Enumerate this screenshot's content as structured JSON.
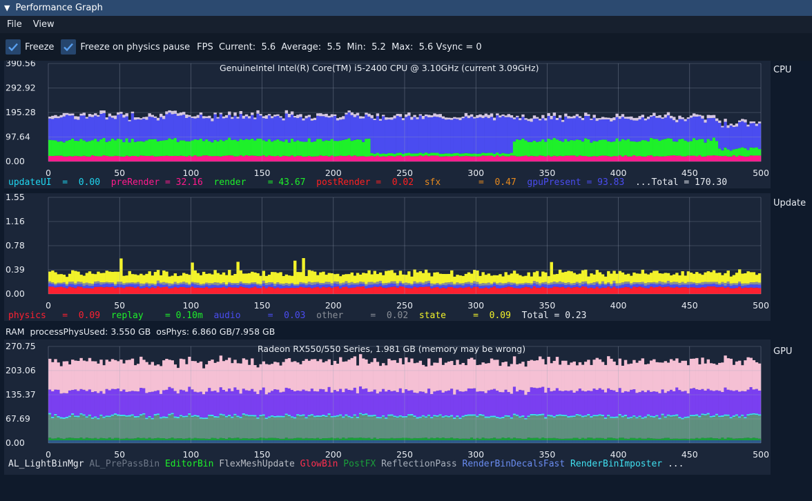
{
  "window": {
    "title": "Performance Graph",
    "collapse_icon": "triangle-down-icon"
  },
  "menu": {
    "file": "File",
    "view": "View"
  },
  "toolbar": {
    "freeze_label": "Freeze",
    "freeze_checked": true,
    "freeze_physics_label": "Freeze on physics pause",
    "freeze_physics_checked": true,
    "fps_label": "FPS",
    "current_label": "Current:",
    "current_value": "5.6",
    "average_label": "Average:",
    "average_value": "5.5",
    "min_label": "Min:",
    "min_value": "5.2",
    "max_label": "Max:",
    "max_value": "5.6",
    "vsync_text": "Vsync = 0"
  },
  "cpu": {
    "side_label": "CPU",
    "info": "GenuineIntel        Intel(R) Core(TM) i5-2400 CPU @ 3.10GHz (current 3.09GHz)",
    "y_ticks": [
      "390.56",
      "292.92",
      "195.28",
      "97.64",
      "0.00"
    ],
    "x_ticks": [
      "0",
      "50",
      "100",
      "150",
      "200",
      "250",
      "300",
      "350",
      "400",
      "450",
      "500"
    ],
    "legend": [
      {
        "name": "updateUI",
        "value": "0.00",
        "color": "#1fd6f0"
      },
      {
        "name": "preRender",
        "value": "32.16",
        "color": "#ff1a8c"
      },
      {
        "name": "render",
        "value": "43.67",
        "color": "#1ef02a"
      },
      {
        "name": "postRender",
        "value": "0.02",
        "color": "#ff2020"
      },
      {
        "name": "sfx",
        "value": "0.47",
        "color": "#e88a1e"
      },
      {
        "name": "gpuPresent",
        "value": "93.83",
        "color": "#4a4cf0"
      }
    ],
    "total_text": "...Total = 170.30"
  },
  "update": {
    "side_label": "Update",
    "y_ticks": [
      "1.55",
      "1.16",
      "0.78",
      "0.39",
      "0.00"
    ],
    "x_ticks": [
      "0",
      "50",
      "100",
      "150",
      "200",
      "250",
      "300",
      "350",
      "400",
      "450",
      "500"
    ],
    "legend": [
      {
        "name": "physics",
        "value": "0.09",
        "color": "#ff2030"
      },
      {
        "name": "replay",
        "value": "0.10m",
        "color": "#1ef02a"
      },
      {
        "name": "audio",
        "value": "0.03",
        "color": "#4a4cf0"
      },
      {
        "name": "other",
        "value": "0.02",
        "color": "#8a8f98"
      },
      {
        "name": "state",
        "value": "0.09",
        "color": "#f2f22a"
      }
    ],
    "total_text": "Total = 0.23"
  },
  "ram": {
    "text": "RAM  processPhysUsed: 3.550 GB  osPhys: 6.860 GB/7.958 GB"
  },
  "gpu": {
    "side_label": "GPU",
    "info": "Radeon RX550/550 Series, 1.981 GB (memory may be wrong)",
    "y_ticks": [
      "270.75",
      "203.06",
      "135.37",
      "67.69",
      "0.00"
    ],
    "x_ticks": [
      "0",
      "50",
      "100",
      "150",
      "200",
      "250",
      "300",
      "350",
      "400",
      "450",
      "500"
    ],
    "legend": [
      {
        "name": "AL_LightBinMgr",
        "color": "#e8ecf2"
      },
      {
        "name": "AL_PrePassBin",
        "color": "#6c7686"
      },
      {
        "name": "EditorBin",
        "color": "#1ef02a"
      },
      {
        "name": "FlexMeshUpdate",
        "color": "#b8bcc4"
      },
      {
        "name": "GlowBin",
        "color": "#ff2f4f"
      },
      {
        "name": "PostFX",
        "color": "#1a9f3a"
      },
      {
        "name": "ReflectionPass",
        "color": "#a8b0bc"
      },
      {
        "name": "RenderBinDecalsFast",
        "color": "#6a8cf0"
      },
      {
        "name": "RenderBinImposter",
        "color": "#40e0f0"
      }
    ],
    "more_text": "..."
  },
  "colors": {
    "panel_bg": "#1b2639",
    "titlebar": "#2c4a70",
    "checkbox": "#26466e"
  }
}
